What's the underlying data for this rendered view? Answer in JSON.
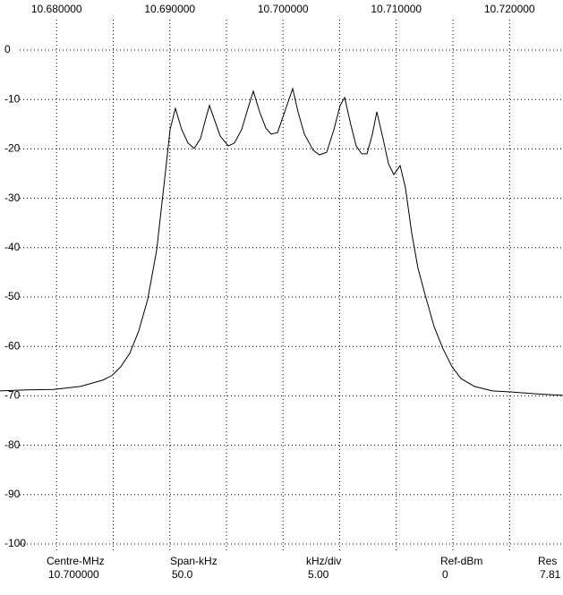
{
  "chart_data": {
    "type": "line",
    "xlim": [
      10.675,
      10.725
    ],
    "ylim": [
      -100,
      0
    ],
    "xticks": [
      {
        "value": 10.68,
        "label": "10.680000"
      },
      {
        "value": 10.685,
        "label": null
      },
      {
        "value": 10.69,
        "label": "10.690000"
      },
      {
        "value": 10.695,
        "label": null
      },
      {
        "value": 10.7,
        "label": "10.700000"
      },
      {
        "value": 10.705,
        "label": null
      },
      {
        "value": 10.71,
        "label": "10.710000"
      },
      {
        "value": 10.715,
        "label": null
      },
      {
        "value": 10.72,
        "label": "10.720000"
      }
    ],
    "yticks": [
      0,
      -10,
      -20,
      -30,
      -40,
      -50,
      -60,
      -70,
      -80,
      -90,
      -100
    ],
    "grid": true,
    "x": [
      10.675,
      10.67737,
      10.67974,
      10.68212,
      10.68409,
      10.68488,
      10.68567,
      10.68646,
      10.68725,
      10.68804,
      10.68883,
      10.68963,
      10.69002,
      10.69049,
      10.69105,
      10.6916,
      10.69215,
      10.69271,
      10.69318,
      10.6935,
      10.69397,
      10.69445,
      10.69516,
      10.69571,
      10.69634,
      10.69698,
      10.69737,
      10.69793,
      10.69848,
      10.69895,
      10.69951,
      10.70014,
      10.70085,
      10.70132,
      10.70188,
      10.70267,
      10.70322,
      10.70385,
      10.70449,
      10.70504,
      10.70544,
      10.70599,
      10.70646,
      10.70694,
      10.70741,
      10.70789,
      10.70828,
      10.70883,
      10.70931,
      10.70978,
      10.71034,
      10.71081,
      10.71136,
      10.71192,
      10.71255,
      10.71334,
      10.71413,
      10.71492,
      10.71571,
      10.7169,
      10.71848,
      10.72006,
      10.72243,
      10.72472
    ],
    "series": [
      {
        "color": "#000000",
        "values": [
          -69.0,
          -68.8,
          -68.7,
          -68.1,
          -66.8,
          -65.9,
          -64.1,
          -61.4,
          -56.9,
          -50.5,
          -40.6,
          -24.3,
          -16.1,
          -11.8,
          -16.1,
          -18.8,
          -19.9,
          -17.9,
          -13.8,
          -11.2,
          -14.3,
          -17.4,
          -19.4,
          -18.8,
          -16.1,
          -11.2,
          -8.3,
          -12.5,
          -15.8,
          -17.0,
          -16.7,
          -12.5,
          -7.8,
          -12.5,
          -17.0,
          -20.3,
          -21.2,
          -20.7,
          -16.1,
          -11.2,
          -9.6,
          -15.2,
          -19.4,
          -21.0,
          -21.0,
          -17.0,
          -12.5,
          -17.9,
          -23.0,
          -25.2,
          -23.4,
          -27.9,
          -37.0,
          -44.2,
          -49.6,
          -56.0,
          -60.5,
          -64.1,
          -66.5,
          -68.1,
          -69.0,
          -69.2,
          -69.6,
          -69.9
        ]
      }
    ],
    "footer": [
      {
        "label": "Centre-MHz",
        "value": "10.700000"
      },
      {
        "label": "Span-kHz",
        "value": "50.0"
      },
      {
        "label": "kHz/div",
        "value": "5.00"
      },
      {
        "label": "Ref-dBm",
        "value": "0"
      },
      {
        "label": "Res",
        "value": "7.81"
      }
    ]
  }
}
